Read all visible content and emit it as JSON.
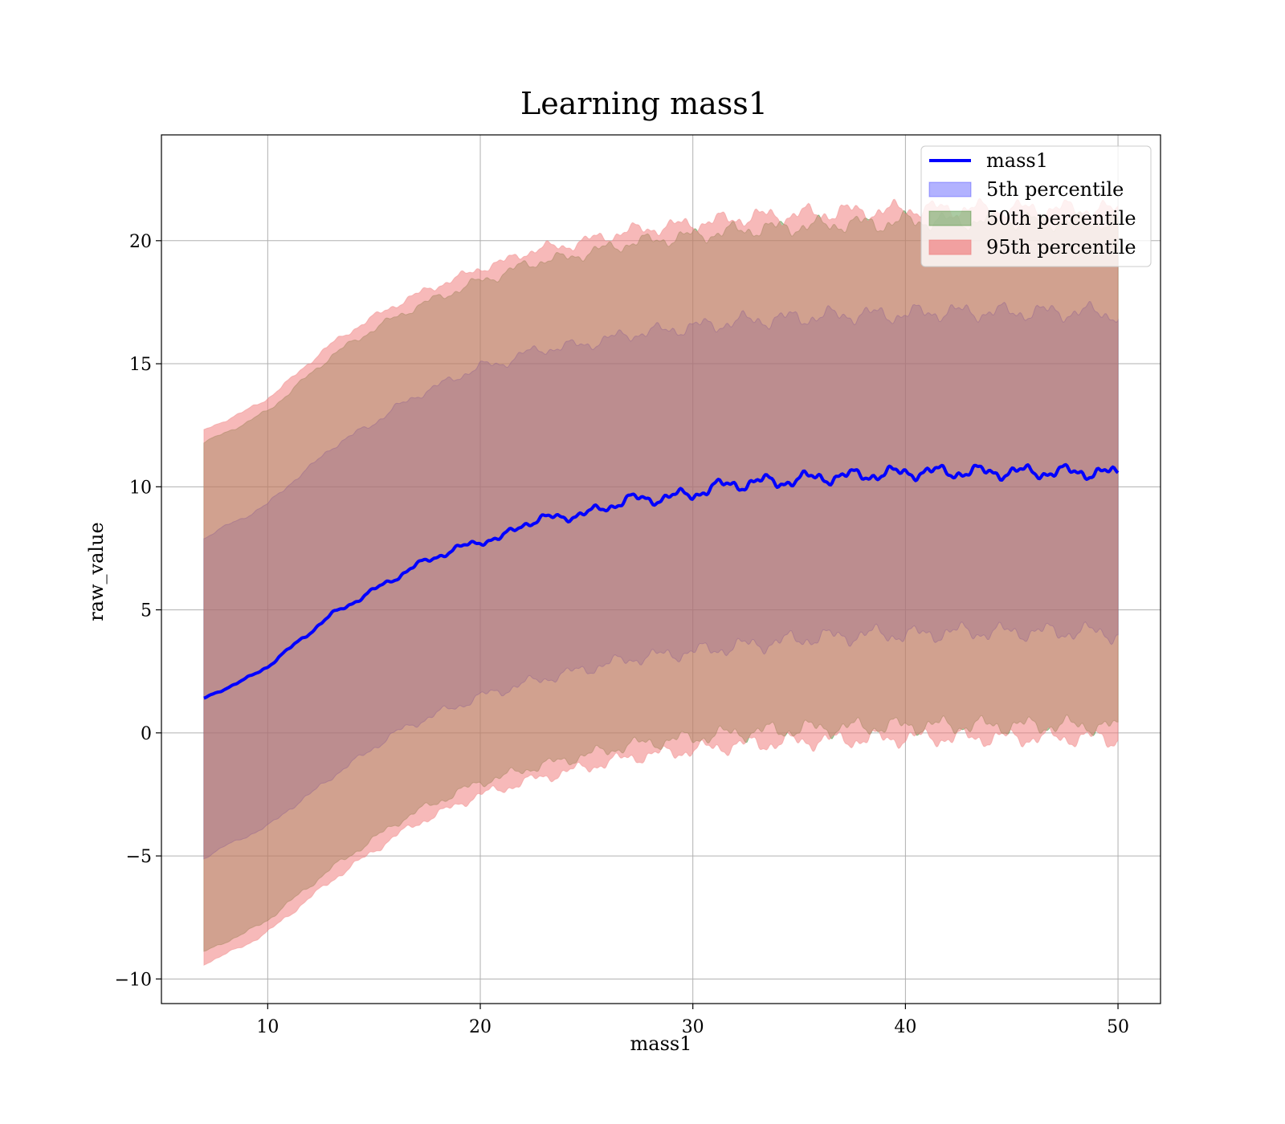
{
  "chart_data": {
    "type": "area",
    "title": "Learning mass1",
    "xlabel": "mass1",
    "ylabel": "raw_value",
    "xlim": [
      5,
      52
    ],
    "ylim": [
      -11,
      24.3
    ],
    "xticks": [
      10,
      20,
      30,
      40,
      50
    ],
    "yticks": [
      -10,
      -5,
      0,
      5,
      10,
      15,
      20
    ],
    "xtick_labels": [
      "10",
      "20",
      "30",
      "40",
      "50"
    ],
    "ytick_labels": [
      "−10",
      "−5",
      "0",
      "5",
      "10",
      "15",
      "20"
    ],
    "grid": true,
    "legend_position": "top-right",
    "x": [
      7,
      8,
      9,
      10,
      11,
      12,
      13,
      14,
      15,
      16,
      17,
      18,
      19,
      20,
      21,
      22,
      23,
      24,
      25,
      26,
      27,
      28,
      29,
      30,
      31,
      32,
      33,
      34,
      35,
      36,
      37,
      38,
      39,
      40,
      41,
      42,
      43,
      44,
      45,
      46,
      47,
      48,
      49,
      50
    ],
    "series": [
      {
        "name": "mass1",
        "kind": "line",
        "color": "#0000ff",
        "values": [
          1.4,
          1.8,
          2.2,
          2.7,
          3.4,
          4.1,
          4.8,
          5.3,
          5.8,
          6.3,
          6.8,
          7.2,
          7.5,
          7.8,
          7.9,
          8.5,
          8.7,
          8.8,
          8.9,
          9.2,
          9.5,
          9.5,
          9.6,
          9.7,
          10.0,
          10.1,
          10.2,
          10.2,
          10.3,
          10.4,
          10.4,
          10.5,
          10.5,
          10.6,
          10.6,
          10.6,
          10.6,
          10.6,
          10.6,
          10.6,
          10.6,
          10.6,
          10.6,
          10.5
        ]
      },
      {
        "name": "5th percentile",
        "kind": "band",
        "color": "#0000ff",
        "lower": [
          -5.1,
          -4.6,
          -4.2,
          -3.8,
          -3.1,
          -2.5,
          -1.8,
          -1.2,
          -0.6,
          0.0,
          0.4,
          0.8,
          1.1,
          1.5,
          1.7,
          2.0,
          2.2,
          2.4,
          2.6,
          2.8,
          3.0,
          3.1,
          3.2,
          3.3,
          3.4,
          3.5,
          3.6,
          3.7,
          3.8,
          3.9,
          3.9,
          4.0,
          4.0,
          4.0,
          4.0,
          4.1,
          4.1,
          4.1,
          4.1,
          4.1,
          4.1,
          4.1,
          4.1,
          4.0
        ],
        "upper": [
          7.9,
          8.4,
          8.8,
          9.3,
          10.1,
          10.8,
          11.6,
          12.1,
          12.6,
          13.2,
          13.7,
          14.1,
          14.5,
          14.9,
          15.0,
          15.4,
          15.6,
          15.7,
          15.8,
          16.0,
          16.2,
          16.3,
          16.4,
          16.5,
          16.6,
          16.7,
          16.8,
          16.8,
          16.9,
          16.9,
          17.0,
          17.0,
          17.0,
          17.0,
          17.1,
          17.1,
          17.1,
          17.1,
          17.1,
          17.1,
          17.1,
          17.1,
          17.1,
          17.0
        ]
      },
      {
        "name": "50th percentile",
        "kind": "band",
        "color": "#2e7d1a",
        "lower": [
          -8.9,
          -8.5,
          -8.1,
          -7.6,
          -6.9,
          -6.2,
          -5.5,
          -4.9,
          -4.3,
          -3.7,
          -3.2,
          -2.8,
          -2.4,
          -2.0,
          -1.8,
          -1.5,
          -1.3,
          -1.1,
          -0.9,
          -0.7,
          -0.5,
          -0.4,
          -0.3,
          -0.2,
          -0.1,
          0.0,
          0.05,
          0.1,
          0.15,
          0.2,
          0.2,
          0.25,
          0.25,
          0.3,
          0.3,
          0.3,
          0.3,
          0.3,
          0.3,
          0.3,
          0.3,
          0.3,
          0.3,
          0.2
        ],
        "upper": [
          11.8,
          12.2,
          12.6,
          13.1,
          13.8,
          14.6,
          15.3,
          15.9,
          16.4,
          16.9,
          17.3,
          17.7,
          18.0,
          18.4,
          18.6,
          19.0,
          19.2,
          19.3,
          19.5,
          19.7,
          19.9,
          20.0,
          20.1,
          20.2,
          20.3,
          20.4,
          20.5,
          20.5,
          20.6,
          20.6,
          20.7,
          20.7,
          20.7,
          20.8,
          20.8,
          20.8,
          20.8,
          20.8,
          20.8,
          20.8,
          20.8,
          20.8,
          20.8,
          20.7
        ]
      },
      {
        "name": "95th percentile",
        "kind": "band",
        "color": "#f08080",
        "lower": [
          -9.4,
          -9.0,
          -8.6,
          -8.1,
          -7.4,
          -6.7,
          -6.0,
          -5.4,
          -4.8,
          -4.2,
          -3.7,
          -3.3,
          -2.9,
          -2.5,
          -2.3,
          -2.0,
          -1.8,
          -1.6,
          -1.4,
          -1.2,
          -1.0,
          -0.9,
          -0.8,
          -0.7,
          -0.6,
          -0.5,
          -0.45,
          -0.4,
          -0.35,
          -0.3,
          -0.3,
          -0.25,
          -0.25,
          -0.2,
          -0.2,
          -0.2,
          -0.2,
          -0.2,
          -0.2,
          -0.2,
          -0.2,
          -0.2,
          -0.2,
          -0.3
        ],
        "upper": [
          12.3,
          12.7,
          13.1,
          13.6,
          14.3,
          15.1,
          15.8,
          16.4,
          16.9,
          17.4,
          17.8,
          18.2,
          18.5,
          18.9,
          19.1,
          19.5,
          19.7,
          19.8,
          20.0,
          20.2,
          20.4,
          20.5,
          20.6,
          20.7,
          20.8,
          20.9,
          21.0,
          21.0,
          21.1,
          21.1,
          21.2,
          21.2,
          21.2,
          21.3,
          21.3,
          21.3,
          21.3,
          21.3,
          21.3,
          21.3,
          21.3,
          21.3,
          21.3,
          21.2
        ]
      }
    ]
  }
}
